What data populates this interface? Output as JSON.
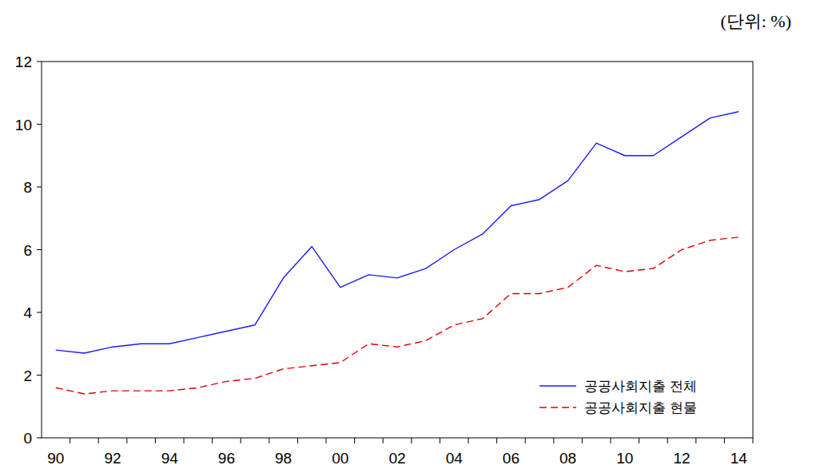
{
  "chart_data": {
    "type": "line",
    "subtitle": "(단위: %)",
    "categories": [
      "90",
      null,
      "92",
      null,
      "94",
      null,
      "96",
      null,
      "98",
      null,
      "00",
      null,
      "02",
      null,
      "04",
      null,
      "06",
      null,
      "08",
      null,
      "10",
      null,
      "12",
      null,
      "14"
    ],
    "series": [
      {
        "name": "공공사회지출 전체",
        "color": "#1a1aff",
        "line_style": "solid",
        "values": [
          2.8,
          2.7,
          2.9,
          3.0,
          3.0,
          3.2,
          3.4,
          3.6,
          5.1,
          6.1,
          4.8,
          5.2,
          5.1,
          5.4,
          6.0,
          6.5,
          7.4,
          7.6,
          8.2,
          9.4,
          9.0,
          9.0,
          9.6,
          10.2,
          10.4
        ]
      },
      {
        "name": "공공사회지출 현물",
        "color": "#e00000",
        "line_style": "dashed",
        "values": [
          1.6,
          1.4,
          1.5,
          1.5,
          1.5,
          1.6,
          1.8,
          1.9,
          2.2,
          2.3,
          2.4,
          3.0,
          2.9,
          3.1,
          3.6,
          3.8,
          4.6,
          4.6,
          4.8,
          5.5,
          5.3,
          5.4,
          6.0,
          6.3,
          6.4
        ]
      }
    ],
    "ylim": [
      0,
      12
    ],
    "yticks": [
      0,
      2,
      4,
      6,
      8,
      10,
      12
    ],
    "grid": false,
    "legend": "lower right"
  }
}
